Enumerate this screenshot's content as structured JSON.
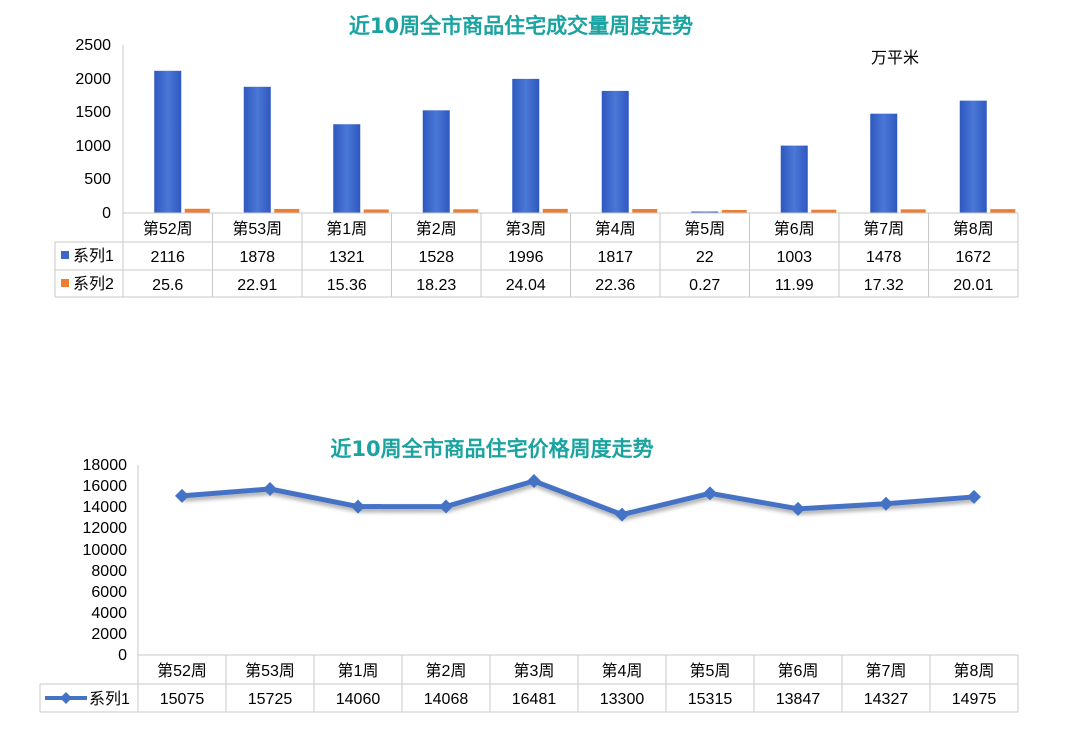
{
  "chart_data": [
    {
      "type": "bar",
      "title": "近10周全市商品住宅成交量周度走势",
      "unit_label": "万平米",
      "categories": [
        "第52周",
        "第53周",
        "第1周",
        "第2周",
        "第3周",
        "第4周",
        "第5周",
        "第6周",
        "第7周",
        "第8周"
      ],
      "series": [
        {
          "name": "系列1",
          "values": [
            2116,
            1878,
            1321,
            1528,
            1996,
            1817,
            22,
            1003,
            1478,
            1672
          ],
          "color": "#3b67c9"
        },
        {
          "name": "系列2",
          "values": [
            25.6,
            22.91,
            15.36,
            18.23,
            24.04,
            22.36,
            0.27,
            11.99,
            17.32,
            20.01
          ],
          "color": "#ed7d31"
        }
      ],
      "table_rows": [
        [
          "2116",
          "1878",
          "1321",
          "1528",
          "1996",
          "1817",
          "22",
          "1003",
          "1478",
          "1672"
        ],
        [
          "25.6",
          "22.91",
          "15.36",
          "18.23",
          "24.04",
          "22.36",
          "0.27",
          "11.99",
          "17.32",
          "20.01"
        ]
      ],
      "ylim": [
        0,
        2500
      ],
      "yticks": [
        "0",
        "500",
        "1000",
        "1500",
        "2000",
        "2500"
      ],
      "grid": false,
      "legend": "data-table"
    },
    {
      "type": "line",
      "title": "近10周全市商品住宅价格周度走势",
      "categories": [
        "第52周",
        "第53周",
        "第1周",
        "第2周",
        "第3周",
        "第4周",
        "第5周",
        "第6周",
        "第7周",
        "第8周"
      ],
      "series": [
        {
          "name": "系列1",
          "values": [
            15075,
            15725,
            14060,
            14068,
            16481,
            13300,
            15315,
            13847,
            14327,
            14975
          ],
          "color": "#4472c4"
        }
      ],
      "table_rows": [
        [
          "15075",
          "15725",
          "14060",
          "14068",
          "16481",
          "13300",
          "15315",
          "13847",
          "14327",
          "14975"
        ]
      ],
      "ylim": [
        0,
        18000
      ],
      "yticks": [
        "0",
        "2000",
        "4000",
        "6000",
        "8000",
        "10000",
        "12000",
        "14000",
        "16000",
        "18000"
      ],
      "grid": false,
      "legend": "data-table"
    }
  ]
}
